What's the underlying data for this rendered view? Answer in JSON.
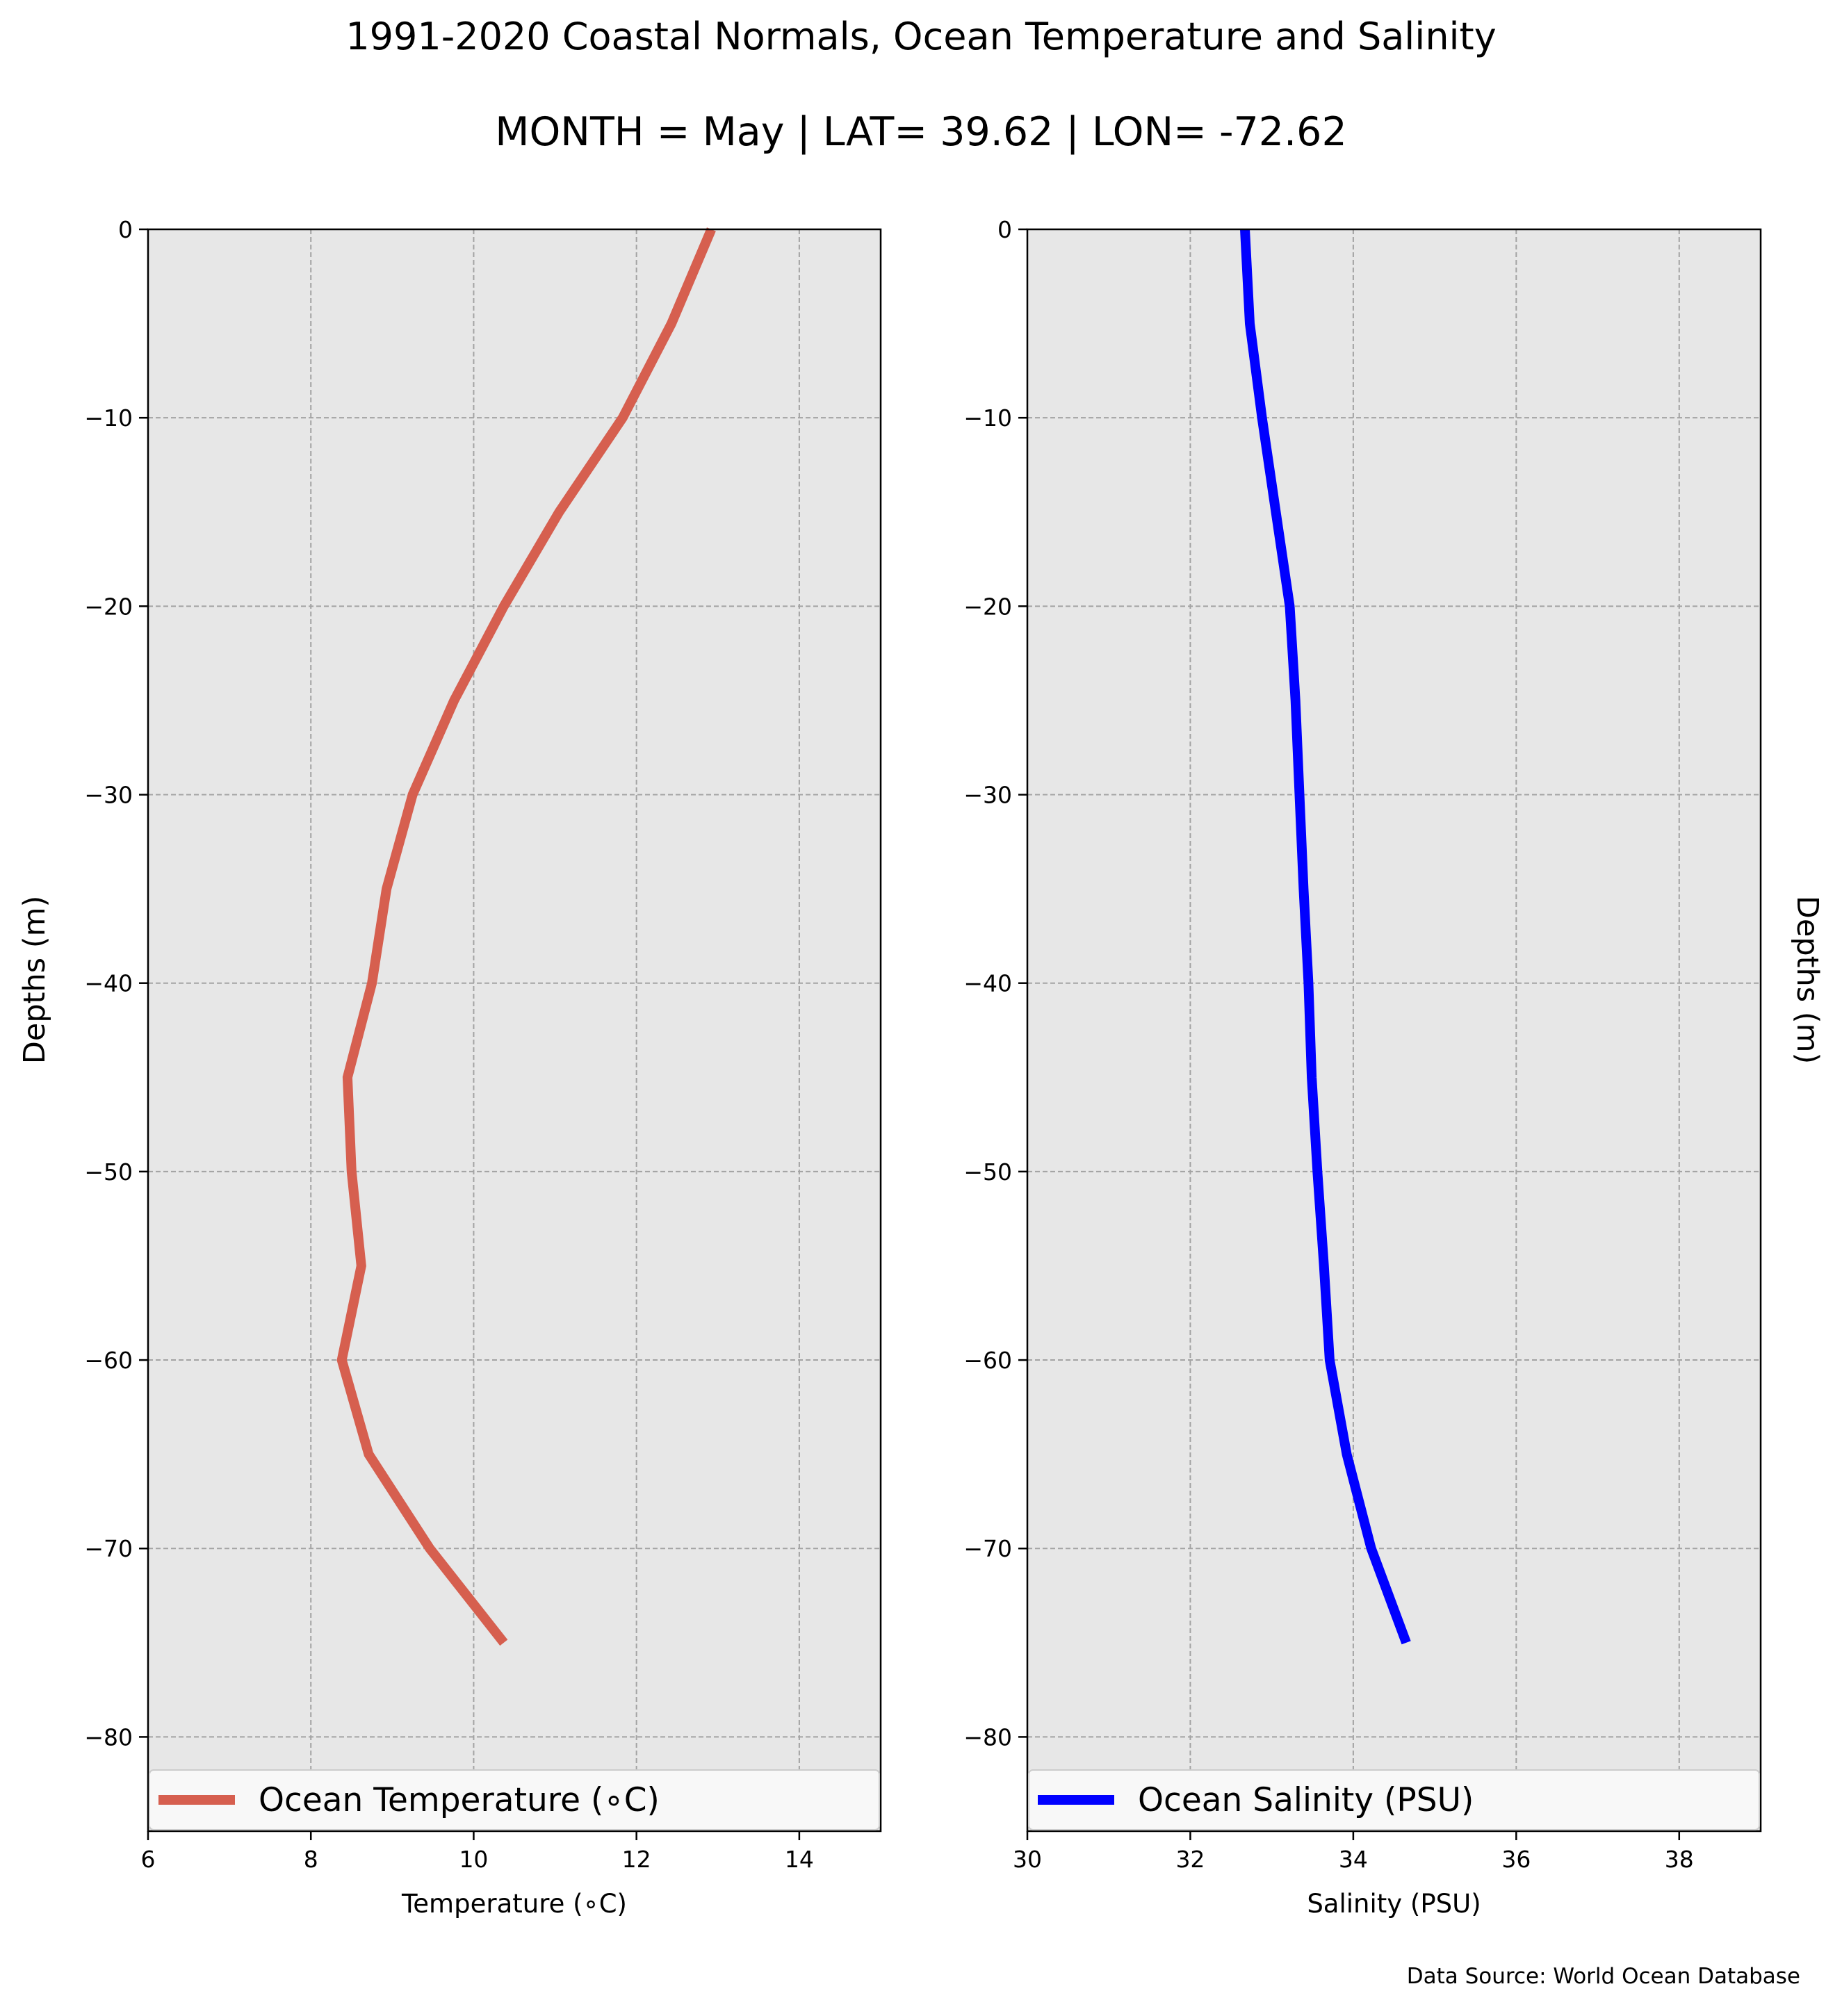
{
  "title": "1991-2020 Coastal Normals, Ocean Temperature and Salinity",
  "subtitle": "MONTH = May | LAT= 39.62 | LON= -72.62",
  "source": "Data Source: World Ocean Database",
  "chart_data": [
    {
      "type": "line",
      "xlabel": "Temperature (∘C)",
      "ylabel": "Depths (m)",
      "legend": "Ocean Temperature (∘C)",
      "legend_position": "bottom",
      "color": "#d65f4f",
      "xlim": [
        6,
        15
      ],
      "ylim": [
        -85,
        0
      ],
      "xticks": [
        6,
        8,
        10,
        12,
        14
      ],
      "yticks": [
        0,
        -10,
        -20,
        -30,
        -40,
        -50,
        -60,
        -70,
        -80
      ],
      "grid": true,
      "depths": [
        0,
        -5,
        -10,
        -15,
        -20,
        -25,
        -30,
        -35,
        -40,
        -45,
        -50,
        -55,
        -60,
        -65,
        -70,
        -75
      ],
      "values": [
        12.92,
        12.43,
        11.83,
        11.05,
        10.37,
        9.76,
        9.25,
        8.93,
        8.75,
        8.45,
        8.5,
        8.62,
        8.38,
        8.71,
        9.46,
        10.37
      ]
    },
    {
      "type": "line",
      "xlabel": "Salinity (PSU)",
      "ylabel": "Depths (m)",
      "legend": "Ocean Salinity (PSU)",
      "legend_position": "bottom",
      "color": "#0000ff",
      "xlim": [
        30,
        39
      ],
      "ylim": [
        -85,
        0
      ],
      "xticks": [
        30,
        32,
        34,
        36,
        38
      ],
      "yticks": [
        0,
        -10,
        -20,
        -30,
        -40,
        -50,
        -60,
        -70,
        -80
      ],
      "grid": true,
      "depths": [
        0,
        -5,
        -10,
        -15,
        -20,
        -25,
        -30,
        -35,
        -40,
        -45,
        -50,
        -55,
        -60,
        -65,
        -70,
        -75
      ],
      "values": [
        32.67,
        32.73,
        32.88,
        33.05,
        33.22,
        33.29,
        33.34,
        33.39,
        33.45,
        33.49,
        33.56,
        33.64,
        33.71,
        33.92,
        34.22,
        34.65
      ]
    }
  ]
}
